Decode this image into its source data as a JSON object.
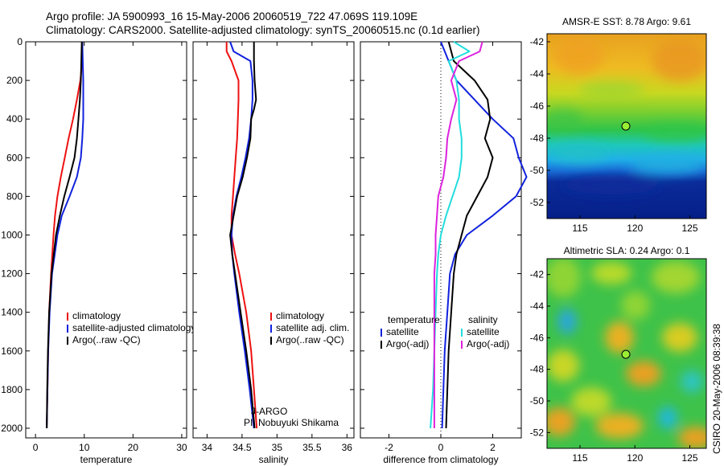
{
  "header": {
    "line1": "Argo profile: JA 5900993_16 15-May-2006 20060519_722 47.069S 119.109E",
    "line2": "Climatology: CARS2000. Satellite-adjusted climatology: synTS_20060515.nc (0.1d earlier)"
  },
  "credit": {
    "program": "J-ARGO",
    "pi": "PI: Nobuyuki Shikama",
    "stamp": "CSIRO 20-May-2006 08:39:38"
  },
  "colors": {
    "climatology": "#ee1111",
    "satellite": "#1122dd",
    "argo": "#000000",
    "cyan": "#22dddd",
    "magenta": "#dd22dd"
  },
  "chart_data": [
    {
      "type": "line",
      "xlabel": "temperature",
      "ylabel": "",
      "xlim": [
        -2,
        31
      ],
      "ylim": [
        2050,
        0
      ],
      "y_reversed": true,
      "xticks": [
        0,
        10,
        20,
        30
      ],
      "yticks": [
        0,
        200,
        400,
        600,
        800,
        1000,
        1200,
        1400,
        1600,
        1800,
        2000
      ],
      "legend": {
        "placement": "lower-right",
        "entries": [
          "climatology",
          "satellite-adjusted climatology",
          "Argo(..raw -QC)"
        ]
      },
      "series": [
        {
          "name": "climatology",
          "color_key": "climatology",
          "depth": [
            0,
            100,
            200,
            300,
            400,
            500,
            600,
            700,
            800,
            900,
            1000,
            1200,
            1400,
            1600,
            1800,
            2000
          ],
          "values": [
            9.6,
            9.6,
            9.2,
            8.5,
            7.7,
            6.8,
            6.0,
            5.2,
            4.5,
            4.0,
            3.7,
            3.2,
            2.8,
            2.6,
            2.45,
            2.3
          ]
        },
        {
          "name": "satellite-adjusted climatology",
          "color_key": "satellite",
          "depth": [
            0,
            100,
            200,
            300,
            400,
            500,
            600,
            700,
            800,
            900,
            1000,
            1200,
            1400,
            1600,
            1800,
            2000
          ],
          "values": [
            9.6,
            9.7,
            9.8,
            9.8,
            9.8,
            9.6,
            9.3,
            8.5,
            7.0,
            5.4,
            4.5,
            3.4,
            2.9,
            2.6,
            2.45,
            2.3
          ]
        },
        {
          "name": "Argo(..raw -QC)",
          "color_key": "argo",
          "depth": [
            0,
            100,
            200,
            300,
            400,
            500,
            600,
            700,
            800,
            900,
            1000,
            1200,
            1400,
            1600,
            1800,
            2000
          ],
          "values": [
            9.5,
            9.4,
            9.3,
            9.1,
            8.8,
            8.5,
            8.0,
            7.0,
            5.9,
            5.0,
            4.2,
            3.3,
            2.8,
            2.55,
            2.4,
            2.3
          ]
        }
      ]
    },
    {
      "type": "line",
      "xlabel": "salinity",
      "ylabel": "",
      "xlim": [
        33.8,
        36.1
      ],
      "ylim": [
        2050,
        0
      ],
      "y_reversed": true,
      "xticks": [
        34,
        34.5,
        35,
        35.5,
        36
      ],
      "legend": {
        "placement": "lower-right",
        "entries": [
          "climatology",
          "satellite adj. clim.",
          "Argo(..raw -QC)"
        ]
      },
      "series": [
        {
          "name": "climatology",
          "color_key": "climatology",
          "depth": [
            0,
            50,
            100,
            200,
            300,
            400,
            500,
            600,
            700,
            800,
            900,
            1000,
            1100,
            1200,
            1400,
            1600,
            1800,
            2000
          ],
          "values": [
            34.28,
            34.28,
            34.35,
            34.45,
            34.45,
            34.44,
            34.43,
            34.41,
            34.39,
            34.37,
            34.35,
            34.35,
            34.4,
            34.46,
            34.56,
            34.63,
            34.67,
            34.71
          ]
        },
        {
          "name": "satellite adj. clim.",
          "color_key": "satellite",
          "depth": [
            0,
            50,
            100,
            200,
            300,
            400,
            500,
            600,
            700,
            800,
            900,
            1000,
            1100,
            1200,
            1400,
            1600,
            1800,
            2000
          ],
          "values": [
            34.33,
            34.38,
            34.62,
            34.65,
            34.65,
            34.63,
            34.6,
            34.55,
            34.49,
            34.42,
            34.37,
            34.35,
            34.36,
            34.39,
            34.46,
            34.54,
            34.61,
            34.67
          ]
        },
        {
          "name": "Argo(..raw -QC)",
          "color_key": "argo",
          "depth": [
            0,
            100,
            200,
            300,
            350,
            400,
            500,
            600,
            700,
            800,
            900,
            1000,
            1100,
            1200,
            1400,
            1600,
            1800,
            2000
          ],
          "values": [
            34.67,
            34.67,
            34.68,
            34.7,
            34.67,
            34.63,
            34.62,
            34.57,
            34.51,
            34.43,
            34.38,
            34.33,
            34.36,
            34.4,
            34.48,
            34.56,
            34.63,
            34.68
          ]
        }
      ]
    },
    {
      "type": "line",
      "xlabel": "difference from climatology",
      "ylabel": "",
      "xlim": [
        -3.1,
        3.1
      ],
      "ylim": [
        2050,
        0
      ],
      "y_reversed": true,
      "xticks": [
        -2,
        0,
        2
      ],
      "legend": {
        "placement": "lower-center",
        "groups": [
          {
            "heading": "temperature",
            "entries": [
              "satellite",
              "Argo(-adj)"
            ]
          },
          {
            "heading": "salinity",
            "entries": [
              "satellite",
              "Argo(-adj)"
            ]
          }
        ]
      },
      "series": [
        {
          "name": "temperature satellite",
          "color_key": "satellite",
          "depth": [
            0,
            100,
            200,
            300,
            400,
            500,
            600,
            700,
            800,
            900,
            1000,
            1100,
            1200,
            1400,
            1600,
            1800,
            2000
          ],
          "values": [
            0.0,
            0.3,
            0.6,
            1.3,
            2.0,
            2.8,
            3.0,
            3.3,
            2.9,
            2.0,
            1.0,
            0.55,
            0.35,
            0.25,
            0.15,
            0.1,
            0.05
          ]
        },
        {
          "name": "temperature Argo(-adj)",
          "color_key": "argo",
          "depth": [
            0,
            100,
            200,
            300,
            400,
            500,
            600,
            700,
            800,
            900,
            1000,
            1100,
            1200,
            1400,
            1600,
            1800,
            2000
          ],
          "values": [
            0.3,
            0.5,
            1.3,
            1.8,
            1.9,
            1.7,
            2.0,
            1.8,
            1.4,
            1.0,
            0.8,
            0.6,
            0.5,
            0.4,
            0.3,
            0.25,
            0.2
          ]
        },
        {
          "name": "salinity satellite",
          "color_key": "cyan",
          "depth": [
            0,
            50,
            100,
            200,
            300,
            400,
            500,
            600,
            700,
            800,
            900,
            1000,
            1100,
            1200,
            1400,
            1600,
            1800,
            2000
          ],
          "values": [
            0.5,
            1.1,
            0.3,
            0.6,
            0.7,
            0.7,
            0.8,
            0.8,
            0.7,
            0.45,
            0.2,
            0.0,
            -0.1,
            -0.15,
            -0.2,
            -0.25,
            -0.3,
            -0.4
          ]
        },
        {
          "name": "salinity Argo(-adj)",
          "color_key": "magenta",
          "depth": [
            0,
            50,
            100,
            200,
            300,
            400,
            500,
            600,
            700,
            800,
            900,
            1000,
            1100,
            1200,
            1400,
            1600,
            1800,
            2000
          ],
          "values": [
            1.6,
            1.5,
            0.7,
            0.4,
            0.6,
            0.4,
            0.25,
            0.2,
            0.1,
            -0.1,
            -0.15,
            -0.2,
            -0.2,
            -0.25,
            -0.25,
            -0.25,
            -0.25,
            -0.25
          ]
        }
      ]
    },
    {
      "type": "heatmap",
      "title": "AMSR-E SST: 8.78 Argo: 9.61",
      "xlim": [
        112,
        126.5
      ],
      "ylim": [
        -53,
        -41.5
      ],
      "xticks": [
        115,
        120,
        125
      ],
      "yticks": [
        -42,
        -44,
        -46,
        -48,
        -50,
        -52
      ],
      "marker": {
        "x": 119.1,
        "y": -47.07
      }
    },
    {
      "type": "heatmap",
      "title": "Altimetric SLA: 0.24 Argo: 0.1",
      "xlim": [
        112,
        126.5
      ],
      "ylim": [
        -53,
        -41
      ],
      "xticks": [
        115,
        120,
        125
      ],
      "yticks": [
        -42,
        -44,
        -46,
        -48,
        -50,
        -52
      ],
      "marker": {
        "x": 119.1,
        "y": -47.07
      }
    }
  ]
}
